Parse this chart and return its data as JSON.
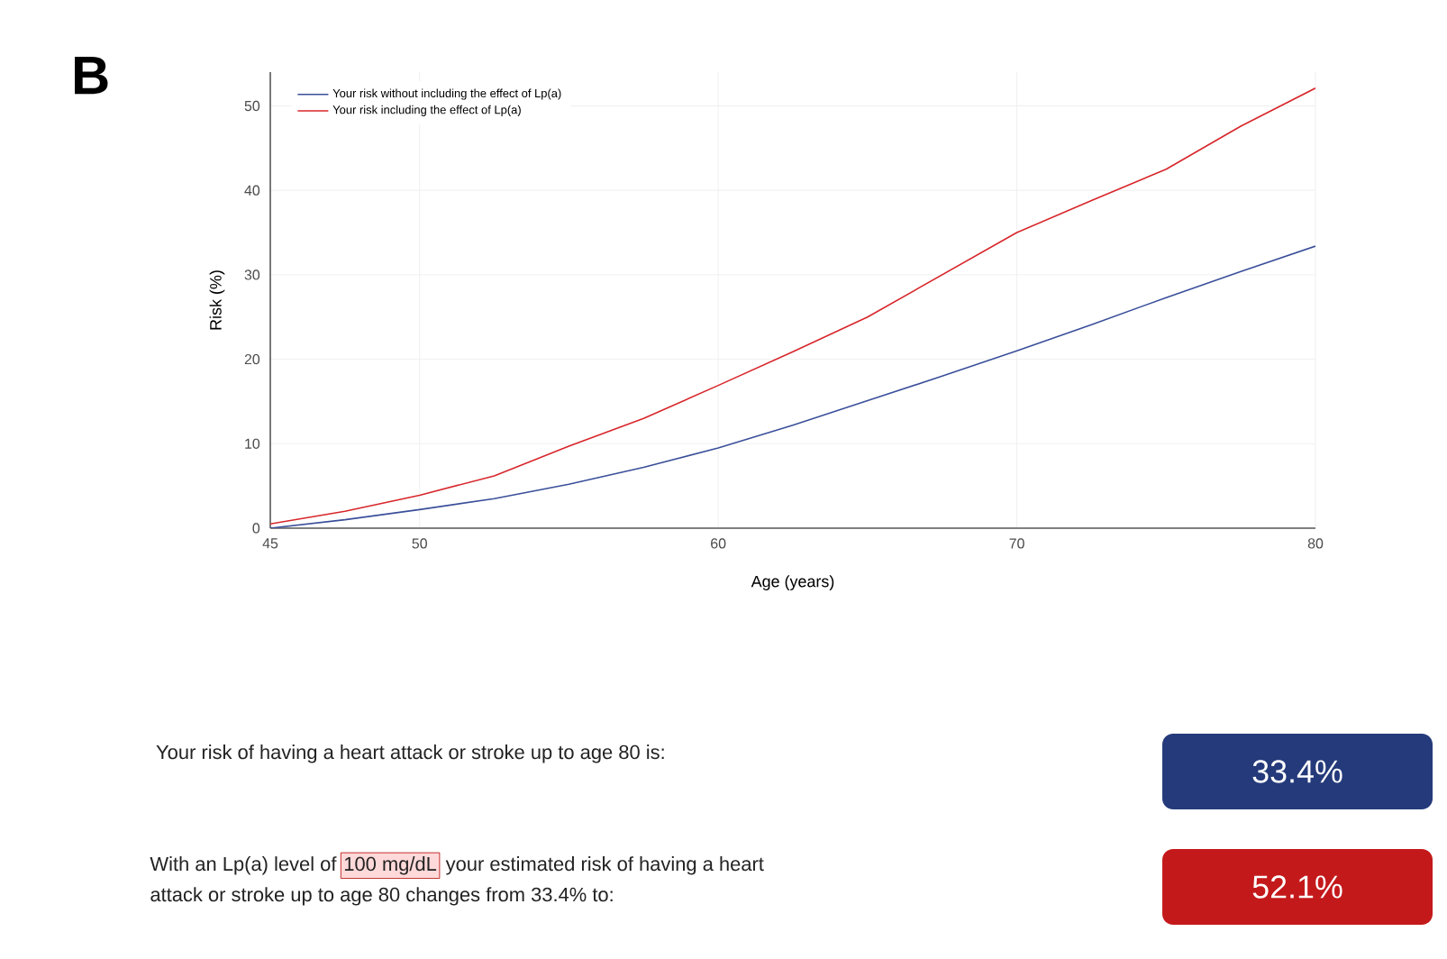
{
  "chart_data": {
    "type": "line",
    "title": "B",
    "xlabel": "Age (years)",
    "ylabel": "Risk (%)",
    "xlim": [
      45,
      80
    ],
    "xticks": [
      45,
      50,
      60,
      70,
      80
    ],
    "ylim": [
      0,
      54
    ],
    "yticks": [
      0,
      10,
      20,
      30,
      40,
      50
    ],
    "grid": true,
    "legend": "top left",
    "series": [
      {
        "name": "Your risk without including the effect of Lp(a)",
        "color": "#3a4f9a",
        "x": [
          45,
          47.5,
          50,
          52.5,
          55,
          57.5,
          60,
          62.5,
          65,
          67.5,
          70,
          72.5,
          75,
          77.5,
          80
        ],
        "values": [
          0,
          1.0,
          2.2,
          3.5,
          5.2,
          7.2,
          9.5,
          12.2,
          15.1,
          18.0,
          21.0,
          24.1,
          27.3,
          30.4,
          33.4
        ]
      },
      {
        "name": "Your risk including the effect of Lp(a)",
        "color": "#d7262b",
        "x": [
          45,
          47.5,
          50,
          52.5,
          55,
          57.5,
          60,
          62.5,
          65,
          67.5,
          70,
          72.5,
          75,
          77.5,
          80
        ],
        "values": [
          0.5,
          2.0,
          3.9,
          6.2,
          9.7,
          13.0,
          16.9,
          20.9,
          25.0,
          30.0,
          35.0,
          38.8,
          42.5,
          47.6,
          52.1
        ]
      }
    ],
    "annotations": [
      "Your risk of having a heart attack or stroke up to age 80 is:",
      "33.4%",
      "With an Lp(a) level of",
      "100 mg/dL",
      "your estimated risk of having a heart",
      "attack or stroke up to age 80 changes from 33.4% to:",
      "52.1%"
    ]
  }
}
